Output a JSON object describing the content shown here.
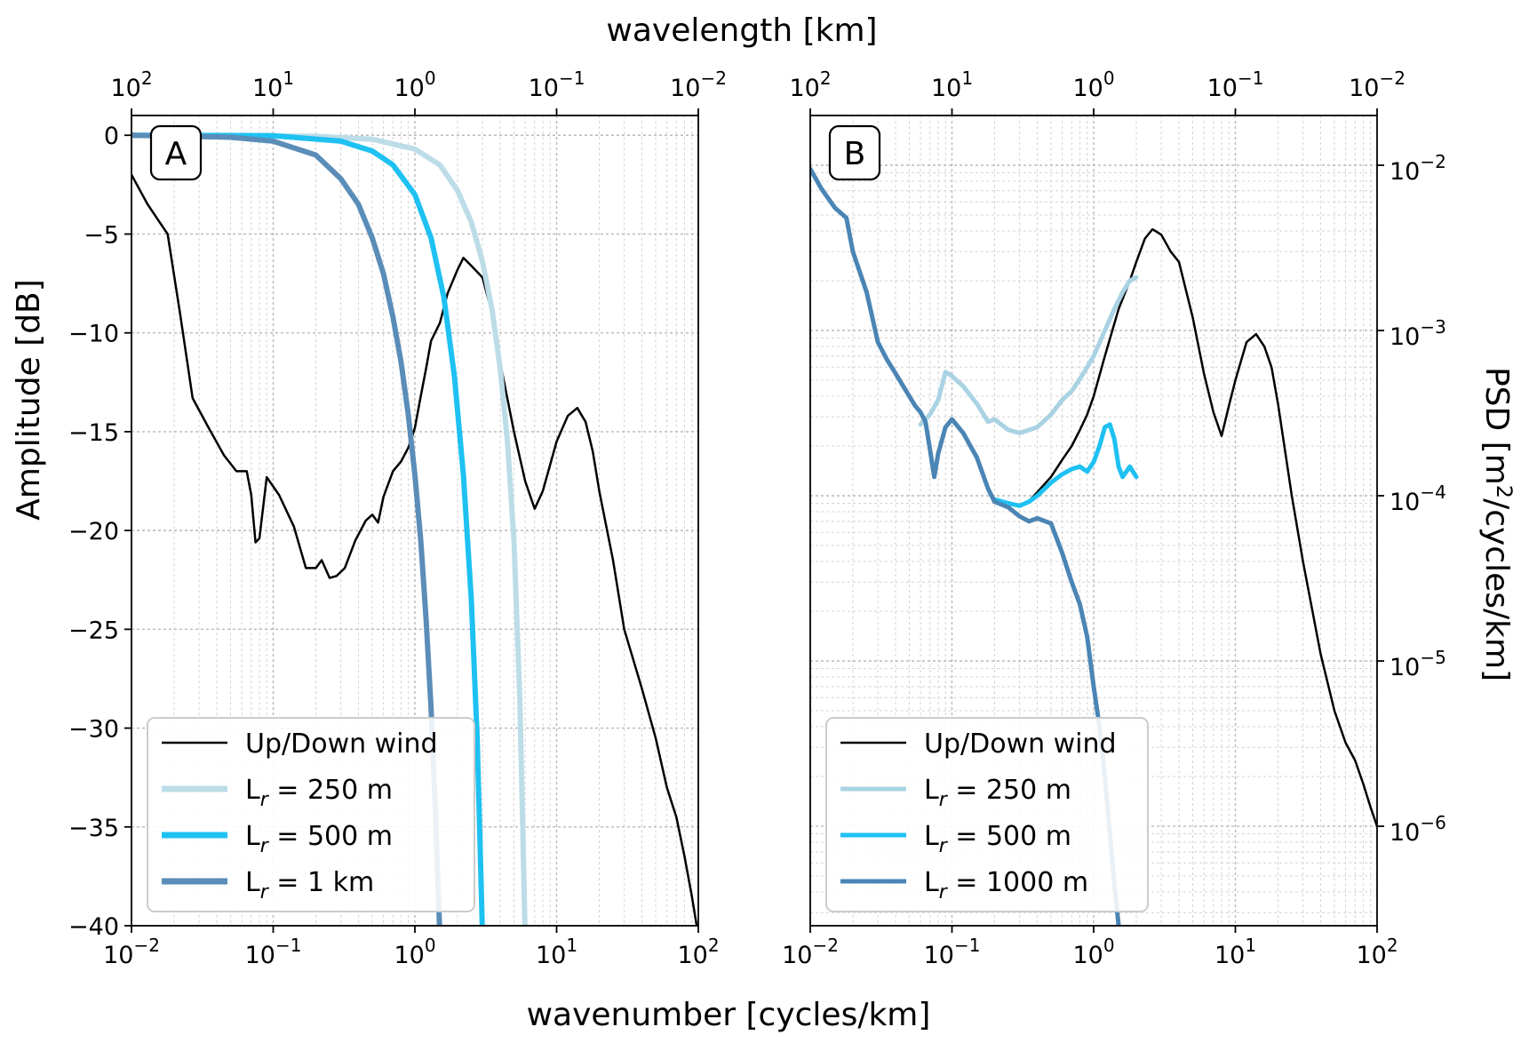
{
  "figure": {
    "x_label": "wavenumber [cycles/km]",
    "top_label": "wavelength [km]"
  },
  "chart_data": [
    {
      "type": "line",
      "panel_label": "A",
      "xscale": "log",
      "xlim": [
        0.01,
        100
      ],
      "ylim": [
        -40,
        1
      ],
      "xlabel": "wavenumber [cycles/km]",
      "ylabel": "Amplitude [dB]",
      "top_xlabel": "wavelength [km]",
      "x_ticks": [
        "10^-2",
        "10^-1",
        "10^0",
        "10^1",
        "10^2"
      ],
      "top_ticks": [
        "10^2",
        "10^1",
        "10^0",
        "10^-1",
        "10^-2"
      ],
      "y_ticks": [
        "0",
        "−5",
        "−10",
        "−15",
        "−20",
        "−25",
        "−30",
        "−35",
        "−40"
      ],
      "grid": true,
      "legend_position": "lower-left",
      "series": [
        {
          "name": "Up/Down wind",
          "name_main": "Up/Down wind",
          "name_sub": "",
          "name_rest": "",
          "color": "#000000",
          "width": 2.5,
          "noise": 0,
          "x": [
            0.01,
            0.013,
            0.018,
            0.022,
            0.027,
            0.035,
            0.045,
            0.055,
            0.065,
            0.07,
            0.075,
            0.08,
            0.09,
            0.11,
            0.14,
            0.17,
            0.2,
            0.22,
            0.25,
            0.28,
            0.32,
            0.38,
            0.45,
            0.5,
            0.55,
            0.6,
            0.7,
            0.8,
            0.9,
            1.0,
            1.1,
            1.2,
            1.3,
            1.5,
            1.7,
            2.0,
            2.2,
            2.5,
            3.0,
            3.5,
            4.0,
            5.0,
            6.0,
            7.0,
            8.0,
            10.0,
            12.0,
            14.0,
            16.0,
            18.0,
            20.0,
            25.0,
            30.0,
            40.0,
            50.0,
            60.0,
            70.0,
            80.0,
            90.0,
            100.0
          ],
          "y": [
            -2,
            -3.5,
            -5,
            -9,
            -13.3,
            -14.8,
            -16.2,
            -17,
            -17,
            -18.2,
            -20.6,
            -20.4,
            -17.3,
            -18.2,
            -19.8,
            -21.9,
            -21.9,
            -21.5,
            -22.4,
            -22.3,
            -21.9,
            -20.5,
            -19.5,
            -19.2,
            -19.6,
            -18.3,
            -17.0,
            -16.5,
            -15.8,
            -14.8,
            -13.2,
            -11.8,
            -10.4,
            -9.5,
            -8.0,
            -6.8,
            -6.2,
            -6.6,
            -7.2,
            -9.0,
            -11.5,
            -15.0,
            -17.5,
            -18.9,
            -18.0,
            -15.5,
            -14.2,
            -13.8,
            -14.5,
            -16.0,
            -18.0,
            -21.5,
            -25.0,
            -28.0,
            -30.5,
            -33.0,
            -34.5,
            -36.5,
            -38.5,
            -40.5
          ]
        },
        {
          "name": "Lr = 250 m",
          "name_main": "L",
          "name_sub": "r",
          "name_rest": " = 250 m",
          "color": "#bcdde8",
          "width": 6,
          "noise": 0,
          "x": [
            0.01,
            0.2,
            0.5,
            1.0,
            1.5,
            2.0,
            2.5,
            3.0,
            3.5,
            4.0,
            4.5,
            5.0,
            5.5,
            6.0
          ],
          "y": [
            0,
            -0.05,
            -0.2,
            -0.7,
            -1.5,
            -2.8,
            -4.4,
            -6.4,
            -8.8,
            -11.8,
            -15.5,
            -20.5,
            -28.5,
            -40.5
          ]
        },
        {
          "name": "Lr = 500 m",
          "name_main": "L",
          "name_sub": "r",
          "name_rest": " = 500 m",
          "color": "#1ec1f2",
          "width": 6,
          "noise": 0,
          "x": [
            0.01,
            0.1,
            0.3,
            0.5,
            0.7,
            1.0,
            1.3,
            1.6,
            1.9,
            2.2,
            2.5,
            2.75,
            3.0
          ],
          "y": [
            0,
            -0.02,
            -0.3,
            -0.8,
            -1.5,
            -3.0,
            -5.2,
            -8.2,
            -12.2,
            -17.2,
            -23.5,
            -30.5,
            -40.5
          ]
        },
        {
          "name": "Lr = 1 km",
          "name_main": "L",
          "name_sub": "r",
          "name_rest": " = 1 km",
          "color": "#5a8db8",
          "width": 6,
          "noise": 0,
          "x": [
            0.01,
            0.05,
            0.1,
            0.2,
            0.3,
            0.4,
            0.5,
            0.6,
            0.7,
            0.8,
            0.9,
            1.0,
            1.1,
            1.2,
            1.3,
            1.4,
            1.5
          ],
          "y": [
            0,
            -0.1,
            -0.3,
            -1.0,
            -2.2,
            -3.5,
            -5.2,
            -7.0,
            -9.2,
            -11.5,
            -14.2,
            -17.2,
            -20.5,
            -24.5,
            -29.0,
            -34.5,
            -40.5
          ]
        }
      ]
    },
    {
      "type": "line",
      "panel_label": "B",
      "xscale": "log",
      "yscale": "log",
      "xlim": [
        0.01,
        100
      ],
      "ylim": [
        2.5e-07,
        0.02
      ],
      "xlabel": "wavenumber [cycles/km]",
      "ylabel": "PSD [m2/cycles/km]",
      "ylabel_main": "PSD [m",
      "ylabel_sup": "2",
      "ylabel_rest": "/cycles/km]",
      "top_xlabel": "wavelength [km]",
      "x_ticks": [
        "10^-2",
        "10^-1",
        "10^0",
        "10^1",
        "10^2"
      ],
      "top_ticks": [
        "10^2",
        "10^1",
        "10^0",
        "10^-1",
        "10^-2"
      ],
      "y_ticks": [
        "10^-6",
        "10^-5",
        "10^-4",
        "10^-3",
        "10^-2"
      ],
      "y_axis_side": "right",
      "grid": true,
      "legend_position": "lower-left",
      "series": [
        {
          "name": "Up/Down wind",
          "name_main": "Up/Down wind",
          "name_sub": "",
          "name_rest": "",
          "color": "#000000",
          "width": 2.5,
          "noise": 0,
          "x": [
            0.2,
            0.25,
            0.3,
            0.35,
            0.4,
            0.5,
            0.6,
            0.7,
            0.8,
            0.9,
            1.0,
            1.2,
            1.5,
            1.8,
            2.0,
            2.3,
            2.6,
            3.0,
            3.5,
            4.0,
            5.0,
            6.0,
            7.0,
            8.0,
            9.0,
            10.0,
            12.0,
            14.0,
            16.0,
            18.0,
            20.0,
            25.0,
            30.0,
            40.0,
            50.0,
            60.0,
            70.0,
            80.0,
            90.0,
            100.0
          ],
          "y": [
            9.5e-05,
            9e-05,
            8.8e-05,
            9.3e-05,
            0.000105,
            0.00013,
            0.000165,
            0.0002,
            0.00025,
            0.00031,
            0.0004,
            0.0007,
            0.00135,
            0.002,
            0.0026,
            0.0036,
            0.0041,
            0.0038,
            0.003,
            0.0026,
            0.0012,
            0.00055,
            0.00032,
            0.00023,
            0.00035,
            0.0005,
            0.00085,
            0.00095,
            0.0008,
            0.0006,
            0.00036,
            0.0001,
            4e-05,
            1.1e-05,
            5e-06,
            3.2e-06,
            2.5e-06,
            1.8e-06,
            1.3e-06,
            1e-06
          ]
        },
        {
          "name": "Lr = 250 m",
          "name_main": "L",
          "name_sub": "r",
          "name_rest": " = 250 m",
          "color": "#a9d3e3",
          "width": 5,
          "noise": 0,
          "x": [
            0.06,
            0.07,
            0.08,
            0.09,
            0.1,
            0.12,
            0.15,
            0.18,
            0.2,
            0.25,
            0.3,
            0.35,
            0.4,
            0.5,
            0.6,
            0.7,
            0.8,
            0.9,
            1.0,
            1.2,
            1.4,
            1.6,
            1.8,
            2.0
          ],
          "y": [
            0.00027,
            0.00031,
            0.00038,
            0.00056,
            0.00053,
            0.00046,
            0.00036,
            0.00028,
            0.00029,
            0.00025,
            0.00024,
            0.00025,
            0.00026,
            0.00031,
            0.00038,
            0.00043,
            0.00051,
            0.0006,
            0.0007,
            0.001,
            0.00135,
            0.0017,
            0.002,
            0.0021
          ]
        },
        {
          "name": "Lr = 500 m",
          "name_main": "L",
          "name_sub": "r",
          "name_rest": " = 500 m",
          "color": "#1ec1f2",
          "width": 5,
          "noise": 0,
          "x": [
            0.2,
            0.25,
            0.3,
            0.35,
            0.4,
            0.5,
            0.6,
            0.7,
            0.8,
            0.9,
            1.0,
            1.1,
            1.2,
            1.3,
            1.4,
            1.5,
            1.6,
            1.7,
            1.8,
            2.0
          ],
          "y": [
            9.5e-05,
            9e-05,
            8.7e-05,
            9.2e-05,
            0.0001,
            0.00012,
            0.000135,
            0.000145,
            0.00015,
            0.00014,
            0.00016,
            0.0002,
            0.00026,
            0.00027,
            0.00022,
            0.00015,
            0.00013,
            0.00014,
            0.00015,
            0.00013
          ]
        },
        {
          "name": "Lr = 1000 m",
          "name_main": "L",
          "name_sub": "r",
          "name_rest": " = 1000 m",
          "color": "#4a85b5",
          "width": 5,
          "noise": 0,
          "x": [
            0.01,
            0.012,
            0.015,
            0.018,
            0.02,
            0.025,
            0.03,
            0.035,
            0.04,
            0.05,
            0.055,
            0.06,
            0.065,
            0.07,
            0.075,
            0.08,
            0.09,
            0.1,
            0.12,
            0.15,
            0.18,
            0.2,
            0.25,
            0.3,
            0.35,
            0.4,
            0.5,
            0.6,
            0.7,
            0.8,
            0.9,
            1.0,
            1.1,
            1.2,
            1.3,
            1.4,
            1.5
          ],
          "y": [
            0.0095,
            0.0072,
            0.0055,
            0.0048,
            0.003,
            0.0017,
            0.00085,
            0.00066,
            0.00055,
            0.0004,
            0.00035,
            0.00032,
            0.00028,
            0.00019,
            0.00013,
            0.00018,
            0.00026,
            0.00029,
            0.00024,
            0.00017,
            0.00011,
            9.2e-05,
            8.5e-05,
            7.5e-05,
            7e-05,
            7.3e-05,
            6.8e-05,
            4.5e-05,
            3e-05,
            2.2e-05,
            1.4e-05,
            7e-06,
            4e-06,
            2e-06,
            9e-07,
            4.5e-07,
            2.5e-07
          ]
        }
      ]
    }
  ]
}
